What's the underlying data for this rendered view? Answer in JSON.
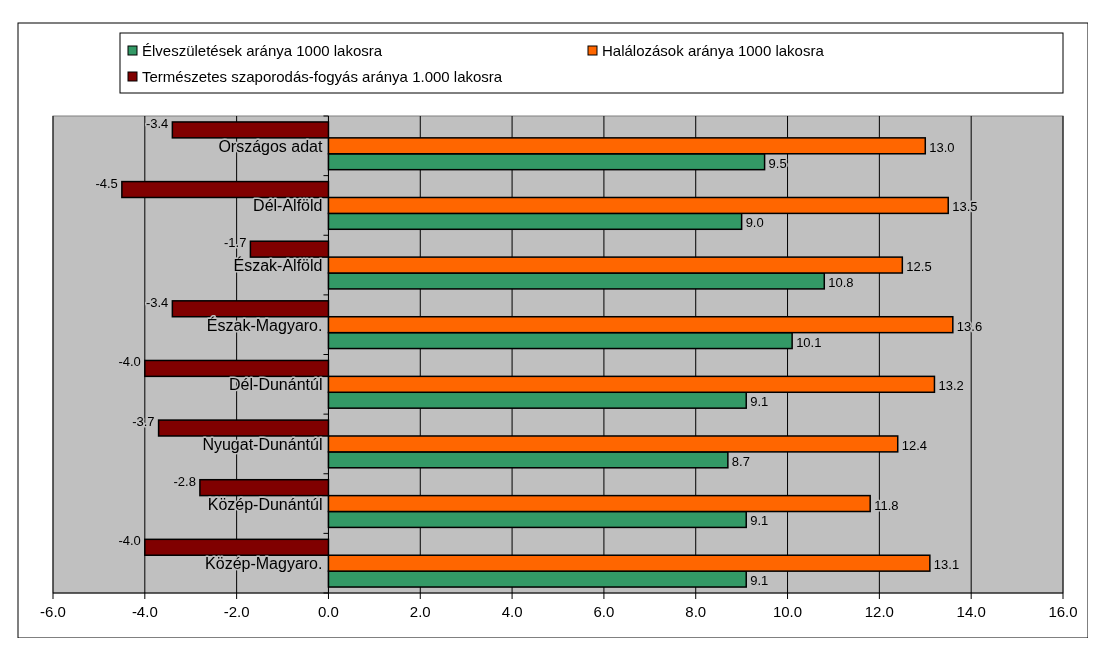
{
  "chart_data": {
    "type": "bar",
    "orientation": "horizontal",
    "categories": [
      "Országos adat",
      "Dél-Alföld",
      "Észak-Alföld",
      "Észak-Magyaro.",
      "Dél-Dunántúl",
      "Nyugat-Dunántúl",
      "Közép-Dunántúl",
      "Közép-Magyaro."
    ],
    "series": [
      {
        "name": "Élveszületések aránya 1000 lakosra",
        "color": "#339966",
        "values": [
          9.5,
          9.0,
          10.8,
          10.1,
          9.1,
          8.7,
          9.1,
          9.1
        ],
        "value_labels": [
          "9.5",
          "9.0",
          "10.8",
          "10.1",
          "9.1",
          "8.7",
          "9.1",
          "9.1"
        ]
      },
      {
        "name": "Halálozások aránya 1000 lakosra",
        "color": "#ff6600",
        "values": [
          13.0,
          13.5,
          12.5,
          13.6,
          13.2,
          12.4,
          11.8,
          13.1
        ],
        "value_labels": [
          "13.0",
          "13.5",
          "12.5",
          "13.6",
          "13.2",
          "12.4",
          "11.8",
          "13.1"
        ]
      },
      {
        "name": "Természetes szaporodás-fogyás aránya 1.000 lakosra",
        "color": "#800000",
        "values": [
          -3.4,
          -4.5,
          -1.7,
          -3.4,
          -4.0,
          -3.7,
          -2.8,
          -4.0
        ],
        "value_labels": [
          "-3.4",
          "-4.5",
          "-1.7",
          "-3.4",
          "-4.0",
          "-3.7",
          "-2.8",
          "-4.0"
        ]
      }
    ],
    "xlim": [
      -6,
      16
    ],
    "xticks": [
      {
        "value": -6,
        "label": "-6.0"
      },
      {
        "value": -4,
        "label": "-4.0"
      },
      {
        "value": -2,
        "label": "-2.0"
      },
      {
        "value": 0,
        "label": "0.0"
      },
      {
        "value": 2,
        "label": "2.0"
      },
      {
        "value": 4,
        "label": "4.0"
      },
      {
        "value": 6,
        "label": "6.0"
      },
      {
        "value": 8,
        "label": "8.0"
      },
      {
        "value": 10,
        "label": "10.0"
      },
      {
        "value": 12,
        "label": "12.0"
      },
      {
        "value": 14,
        "label": "14.0"
      },
      {
        "value": 16,
        "label": "16.0"
      }
    ],
    "grid": "x",
    "legend": "top"
  }
}
